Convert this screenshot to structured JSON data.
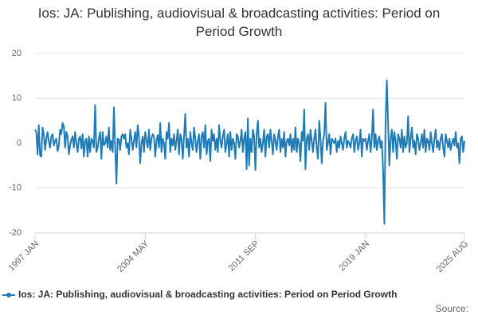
{
  "chart_data": {
    "type": "line",
    "title": "Ios: JA: Publishing, audiovisual & broadcasting activities: Period on Period Growth",
    "source_label": "Source:",
    "ylim": [
      -20,
      20
    ],
    "yticks": [
      -20,
      -10,
      0,
      10,
      20
    ],
    "grid": true,
    "legend": "bottom",
    "categories": [
      "1997 JAN",
      null,
      null,
      null,
      null,
      null,
      null,
      null,
      null,
      null,
      null,
      null,
      null,
      null,
      null,
      null,
      null,
      null,
      null,
      null,
      null,
      null,
      null,
      null,
      null,
      null,
      null,
      null,
      null,
      null,
      null,
      null,
      null,
      null,
      null,
      null,
      null,
      null,
      null,
      null,
      null,
      null,
      null,
      null,
      null,
      null,
      null,
      null,
      null,
      null,
      null,
      null,
      null,
      null,
      null,
      null,
      null,
      null,
      null,
      null,
      null,
      null,
      null,
      null,
      null,
      null,
      null,
      null,
      null,
      null,
      null,
      null,
      null,
      null,
      null,
      null,
      null,
      null,
      null,
      null,
      null,
      null,
      null,
      null,
      null,
      null,
      null,
      null,
      "2004 MAY",
      null,
      null,
      null,
      null,
      null,
      null,
      null,
      null,
      null,
      null,
      null,
      null,
      null,
      null,
      null,
      null,
      null,
      null,
      null,
      null,
      null,
      null,
      null,
      null,
      null,
      null,
      null,
      null,
      null,
      null,
      null,
      null,
      null,
      null,
      null,
      null,
      null,
      null,
      null,
      null,
      null,
      null,
      null,
      null,
      null,
      null,
      null,
      null,
      null,
      null,
      null,
      null,
      null,
      null,
      null,
      null,
      null,
      null,
      null,
      null,
      null,
      null,
      null,
      null,
      null,
      null,
      null,
      null,
      null,
      null,
      null,
      null,
      null,
      null,
      null,
      null,
      null,
      null,
      null,
      null,
      null,
      null,
      null,
      null,
      null,
      null,
      null,
      "2011 SEP",
      null,
      null,
      null,
      null,
      null,
      null,
      null,
      null,
      null,
      null,
      null,
      null,
      null,
      null,
      null,
      null,
      null,
      null,
      null,
      null,
      null,
      null,
      null,
      null,
      null,
      null,
      null,
      null,
      null,
      null,
      null,
      null,
      null,
      null,
      null,
      null,
      null,
      null,
      null,
      null,
      null,
      null,
      null,
      null,
      null,
      null,
      null,
      null,
      null,
      null,
      null,
      null,
      null,
      null,
      null,
      null,
      null,
      null,
      null,
      null,
      null,
      null,
      null,
      null,
      null,
      null,
      null,
      null,
      null,
      null,
      null,
      null,
      null,
      null,
      null,
      null,
      null,
      null,
      null,
      null,
      null,
      null,
      null,
      null,
      null,
      null,
      null,
      "2019 JAN",
      null,
      null,
      null,
      null,
      null,
      null,
      null,
      null,
      null,
      null,
      null,
      null,
      null,
      null,
      null,
      null,
      null,
      null,
      null,
      null,
      null,
      null,
      null,
      null,
      null,
      null,
      null,
      null,
      null,
      null,
      null,
      null,
      null,
      null,
      null,
      null,
      null,
      null,
      null,
      null,
      null,
      null,
      null,
      null,
      null,
      null,
      null,
      null,
      null,
      null,
      null,
      null,
      null,
      null,
      null,
      null,
      null,
      null,
      null,
      null,
      null,
      null,
      null,
      null,
      null,
      null,
      null,
      null,
      null,
      null,
      null,
      null,
      null,
      null,
      null,
      null,
      null,
      null,
      "2025 AUG"
    ],
    "series": [
      {
        "name": "Ios: JA: Publishing, audiovisual & broadcasting activities: Period on Period Growth",
        "color": "#1f7bb6",
        "values": [
          3,
          2.5,
          -2.5,
          4,
          -2.8,
          -3,
          3.5,
          2,
          -1.5,
          1,
          2.5,
          0.5,
          -1,
          1.5,
          2,
          -0.5,
          0.5,
          1,
          -1.8,
          -0.5,
          3,
          2,
          4.5,
          3.8,
          -1,
          2.5,
          1.5,
          -2.5,
          -0.5,
          0.8,
          1.5,
          -1,
          2.5,
          0,
          -2,
          1,
          1.5,
          -1.2,
          2,
          -3,
          0.5,
          1,
          -3,
          1.5,
          -2,
          1,
          0.5,
          -1,
          8.5,
          -2,
          -1,
          1,
          2.5,
          -3.5,
          2.5,
          -0.5,
          0,
          1.5,
          -1,
          3.5,
          -1.5,
          0.5,
          -2,
          8,
          -1,
          -9,
          1,
          0.8,
          -1.5,
          1.5,
          2,
          1,
          2,
          -1,
          0,
          -2.5,
          3,
          1,
          -1.5,
          0.5,
          2.5,
          -1,
          4,
          1.5,
          -4.5,
          0,
          1.5,
          -2,
          2.5,
          0.5,
          -1,
          3,
          -1.5,
          1,
          2,
          1.5,
          -3,
          0.5,
          1.8,
          -1,
          4.5,
          -2,
          1,
          0,
          -3.5,
          2.5,
          1,
          4.5,
          -2,
          1,
          -0.5,
          2,
          -1.5,
          0.5,
          3,
          -2.5,
          2,
          1,
          -3.5,
          1.5,
          6.5,
          -1,
          1,
          -3,
          2.5,
          0,
          -1.5,
          3.5,
          1,
          -2,
          0.5,
          2,
          -3.5,
          1.5,
          2.5,
          -1,
          4,
          -2.5,
          0.5,
          1,
          -4,
          3,
          0.5,
          2,
          -1.5,
          1,
          -2,
          4,
          0.5,
          -1,
          1.5,
          3,
          -2,
          0,
          2,
          -3,
          2.5,
          -1.5,
          1,
          0,
          -3.5,
          2,
          1.5,
          -1,
          0.5,
          3,
          -2,
          1,
          2.5,
          -5.8,
          5.5,
          -5,
          1,
          -2,
          3,
          1.5,
          -6,
          2,
          5,
          -1,
          1,
          -2,
          0,
          3,
          -3,
          1.5,
          2,
          -1,
          3,
          0.5,
          -2.5,
          2,
          0.5,
          -1.5,
          1.5,
          3,
          -2,
          1,
          -1,
          2.5,
          -3,
          0.5,
          1,
          -0.5,
          2,
          -2,
          1,
          -1.5,
          3.5,
          -2,
          1,
          0,
          -4,
          2.5,
          0.5,
          7.5,
          -5.8,
          1,
          2,
          -1.5,
          3,
          0.5,
          -2,
          1,
          3,
          -1,
          -3.5,
          5,
          1,
          -4.5,
          0.5,
          2,
          9,
          -1.5,
          0,
          2,
          -2.5,
          1,
          0.5,
          0,
          1,
          -2,
          0.5,
          -1,
          1.5,
          0,
          -1.5,
          1,
          2.5,
          -1,
          0.5,
          0,
          -1,
          1,
          2,
          -2,
          0.5,
          1.5,
          -1.5,
          0,
          3,
          -3,
          1,
          0.5,
          1,
          -1.5,
          0.5,
          2,
          -2,
          1,
          7.5,
          -1,
          2,
          -1.5,
          0.5,
          1.5,
          -1,
          0.5,
          -6,
          -18,
          5,
          14,
          4.5,
          -5,
          1,
          3,
          -2,
          2.5,
          0.5,
          -3.5,
          2,
          1,
          -1,
          3,
          -2,
          1.5,
          -1,
          0,
          6,
          -2,
          1,
          3.5,
          -1,
          0.5,
          -2.5,
          2,
          1,
          -1.5,
          0,
          2,
          -1,
          3,
          -2,
          1,
          0.5,
          -1.5,
          2.5,
          0,
          -2,
          1,
          3,
          -1,
          0.5,
          -1.5,
          1,
          2,
          -1,
          -3,
          2,
          0.5,
          -1,
          1,
          -1.5,
          0,
          1,
          -0.5,
          2.5,
          -1,
          0,
          -4.5,
          1,
          1.5,
          -2,
          0.5
        ]
      }
    ]
  }
}
